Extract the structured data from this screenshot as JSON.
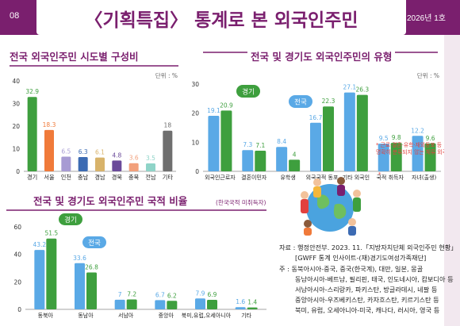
{
  "header": {
    "page_number": "08",
    "title": "〈기획특집〉 통계로 본 외국인주민",
    "issue": "2026년 1호"
  },
  "colors": {
    "purple": "#7a1f6e",
    "blue": "#5aa9e6",
    "green": "#3e9f3e"
  },
  "chart_data": [
    {
      "type": "bar",
      "title": "전국 외국인주민 시도별 구성비",
      "unit_label": "단위 : %",
      "ylim": [
        0,
        40
      ],
      "yticks": [
        0,
        10,
        20,
        30,
        40
      ],
      "categories": [
        "경기",
        "서울",
        "인천",
        "충남",
        "경남",
        "경북",
        "충북",
        "전남",
        "기타"
      ],
      "values": [
        32.9,
        18.3,
        6.5,
        6.3,
        6.1,
        4.8,
        3.6,
        3.5,
        18
      ],
      "bar_colors": [
        "#3e9f3e",
        "#f07a3a",
        "#a79bd3",
        "#3c6bb3",
        "#d8b36a",
        "#6a4a9a",
        "#f2a07b",
        "#8fd4c8",
        "#6f6f6f"
      ]
    },
    {
      "type": "bar",
      "title": "전국 및 경기도 외국인주민의 유형",
      "unit_label": "단위 : %",
      "ylim": [
        0,
        30
      ],
      "yticks": [
        0,
        10,
        20,
        30
      ],
      "categories": [
        "외국인근로자",
        "결혼이민자",
        "유학생",
        "외국국적 동포",
        "기타 외국인",
        "국적 취득자",
        "자녀(출생)"
      ],
      "series": [
        {
          "name": "전국",
          "values": [
            19.1,
            7.3,
            8.4,
            16.7,
            27.1,
            9.5,
            12.2
          ]
        },
        {
          "name": "경기",
          "values": [
            20.9,
            7.1,
            4,
            22.3,
            26.3,
            9.8,
            9.6
          ]
        }
      ],
      "callout_nation": "전국",
      "callout_gyeonggi": "경기",
      "asterisk_mark": "*",
      "footnote": "* 근로·결혼·유학·재외동포 등\n명확히 분류되지 않는 체류 외국인"
    },
    {
      "type": "bar",
      "title": "전국 및 경기도 외국인주민 국적 비율",
      "subtitle": "(한국국적 미취득자)",
      "ylim": [
        0,
        60
      ],
      "yticks": [
        0,
        20,
        40,
        60
      ],
      "categories": [
        "동북아",
        "동남아",
        "서남아",
        "중앙아",
        "북미,유럽,오세아니아",
        "기타"
      ],
      "series": [
        {
          "name": "전국",
          "values": [
            43.2,
            33.6,
            7,
            6.7,
            7.9,
            1.6
          ]
        },
        {
          "name": "경기",
          "values": [
            51.5,
            26.8,
            7.2,
            6.2,
            6.9,
            1.4
          ]
        }
      ],
      "callout_gyeonggi": "경기",
      "callout_nation": "전국"
    }
  ],
  "notes": {
    "source_line1": "자료 : 행정안전부. 2023. 11.「지방자치단체 외국인주민 현황」",
    "source_line2": "[GWFF 통계 인사이트-(재)경기도여성가족재단]",
    "note_line1": "주 : 동북아시아-중국, 중국(한국계), 대만, 일본, 몽골",
    "note_line2": "동남아시아-베트남, 필리핀, 태국, 인도네시아, 캄보디아 등",
    "note_line3": "서남아시아-스리랑카, 파키스탄, 방글라데시, 네팔 등",
    "note_line4": "중앙아시아-우즈베키스탄, 카자흐스탄, 키르기스탄 등",
    "note_line5": "북미, 유럽, 오세아니아-미국, 캐나다, 러시아, 영국 등"
  }
}
